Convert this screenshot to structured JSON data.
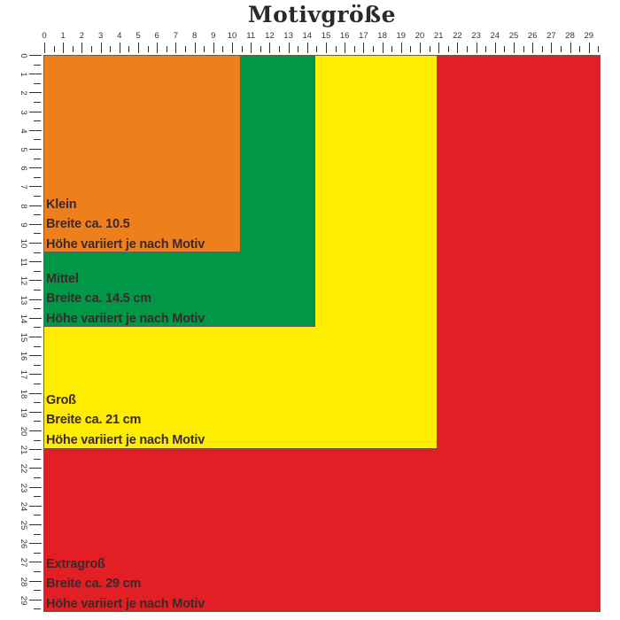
{
  "title": "Motivgröße",
  "ruler": {
    "unit": "cm",
    "labels": [
      "0",
      "1",
      "2",
      "3",
      "4",
      "5",
      "6",
      "7",
      "8",
      "9",
      "10",
      "11",
      "12",
      "13",
      "14",
      "15",
      "16",
      "17",
      "18",
      "19",
      "20",
      "21",
      "22",
      "23",
      "24",
      "25",
      "26",
      "27",
      "28",
      "29"
    ]
  },
  "sizes": [
    {
      "name": "Klein",
      "width_cm": 10.5,
      "width_text": "Breite ca. 10.5",
      "height_text": "Höhe variiert je nach Motiv",
      "color": "#EF7F1A"
    },
    {
      "name": "Mittel",
      "width_cm": 14.5,
      "width_text": "Breite ca. 14.5 cm",
      "height_text": "Höhe variiert je nach Motiv",
      "color": "#009846"
    },
    {
      "name": "Groß",
      "width_cm": 21,
      "width_text": "Breite ca. 21 cm",
      "height_text": "Höhe variiert je nach Motiv",
      "color": "#FFED00"
    },
    {
      "name": "Extragroß",
      "width_cm": 29,
      "width_text": "Breite ca. 29 cm",
      "height_text": "Höhe variiert je nach Motiv",
      "color": "#E31E24"
    }
  ]
}
